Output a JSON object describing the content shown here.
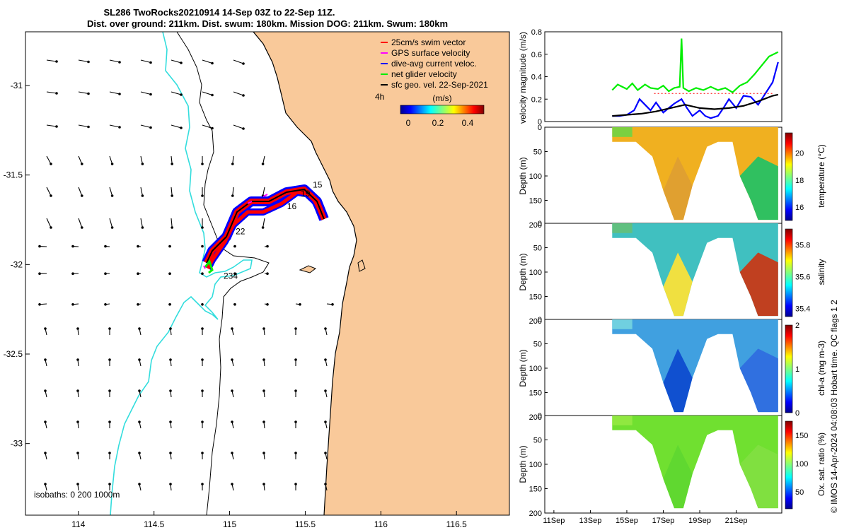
{
  "page": {
    "title_line1": "SL286 TwoRocks20210914 14-Sep 03Z to 22-Sep 11Z.",
    "title_line2": "Dist. over ground: 211km. Dist. swum: 180km. Mission DOG: 211km. Swum: 180km",
    "credit": "© IMOS 14-Apr-2024 04:08:03 Hobart time. QC flags 1  2"
  },
  "colors": {
    "land": "#f9c99a",
    "swim_vector": "#ff0000",
    "gps_surface": "#ff00ff",
    "dive_avg": "#0000ff",
    "net_glider": "#00ee00",
    "sfc_geo": "#000000",
    "isobath": "#33dddd"
  },
  "chart_data": [
    {
      "type": "map",
      "name": "track",
      "xlim": [
        113.65,
        116.85
      ],
      "ylim": [
        -33.4,
        -30.7
      ],
      "x_ticks": [
        "114",
        "114.5",
        "115",
        "115.5",
        "116",
        "116.5"
      ],
      "x_tick_values": [
        114,
        114.5,
        115,
        115.5,
        116,
        116.5
      ],
      "y_ticks": [
        "-31",
        "-31.5",
        "-32",
        "-32.5",
        "-33"
      ],
      "y_tick_values": [
        -31,
        -31.5,
        -32,
        -32.5,
        -33
      ],
      "legend": [
        {
          "label": "25cm/s swim vector",
          "color": "#ff0000"
        },
        {
          "label": "GPS surface velocity",
          "color": "#ff00ff"
        },
        {
          "label": "dive-avg current veloc.",
          "color": "#0000ff"
        },
        {
          "label": "net glider velocity",
          "color": "#00ee00"
        },
        {
          "label": "sfc geo. vel. 22-Sep-2021",
          "color": "#000000"
        }
      ],
      "legend_note": "4h",
      "colorbar": {
        "title": "(m/s)",
        "ticks": [
          "0",
          "0.2",
          "0.4"
        ],
        "range": [
          0,
          0.5
        ]
      },
      "track_labels": [
        {
          "text": "15",
          "lon": 115.55,
          "lat": -31.57
        },
        {
          "text": "19",
          "lon": 115.47,
          "lat": -31.62
        },
        {
          "text": "16",
          "lon": 115.38,
          "lat": -31.69
        },
        {
          "text": "22",
          "lon": 115.04,
          "lat": -31.83
        },
        {
          "text": "234",
          "lon": 114.96,
          "lat": -32.08
        }
      ],
      "isobaths_label": "isobaths: 0   200   1000m"
    },
    {
      "type": "line",
      "name": "velocity",
      "ylabel": "velocity magnitude (m/s)",
      "ylim": [
        0,
        0.8
      ],
      "y_ticks": [
        "0",
        "0.2",
        "0.4",
        "0.6",
        "0.8"
      ],
      "x_range_days": [
        10.5,
        23.5
      ],
      "series": [
        {
          "color": "#00ee00",
          "x": [
            14.2,
            14.5,
            15,
            15.3,
            15.6,
            16,
            16.3,
            16.7,
            17,
            17.3,
            17.6,
            17.9,
            18.0,
            18.1,
            18.4,
            18.8,
            19.2,
            19.6,
            20.0,
            20.4,
            20.8,
            21.2,
            21.6,
            22.0,
            22.4,
            22.8,
            23.3
          ],
          "y": [
            0.28,
            0.33,
            0.29,
            0.34,
            0.28,
            0.33,
            0.3,
            0.29,
            0.32,
            0.27,
            0.3,
            0.31,
            0.74,
            0.3,
            0.27,
            0.3,
            0.28,
            0.31,
            0.28,
            0.3,
            0.26,
            0.32,
            0.35,
            0.42,
            0.5,
            0.58,
            0.62
          ]
        },
        {
          "color": "#0000ff",
          "x": [
            14.2,
            14.6,
            15.0,
            15.4,
            15.7,
            16.0,
            16.3,
            16.6,
            17.0,
            17.3,
            17.6,
            18.0,
            18.3,
            18.6,
            19.0,
            19.3,
            19.6,
            20.0,
            20.3,
            20.6,
            21.0,
            21.4,
            21.8,
            22.2,
            22.6,
            23.0,
            23.3
          ],
          "y": [
            0.05,
            0.05,
            0.06,
            0.1,
            0.2,
            0.15,
            0.1,
            0.17,
            0.08,
            0.12,
            0.16,
            0.2,
            0.12,
            0.05,
            0.1,
            0.05,
            0.03,
            0.05,
            0.12,
            0.2,
            0.12,
            0.23,
            0.22,
            0.15,
            0.25,
            0.35,
            0.53
          ]
        },
        {
          "color": "#000000",
          "x": [
            14.2,
            15.0,
            15.8,
            16.6,
            17.4,
            18.2,
            19.0,
            19.8,
            20.6,
            21.4,
            22.2,
            23.0,
            23.3
          ],
          "y": [
            0.05,
            0.06,
            0.07,
            0.09,
            0.12,
            0.15,
            0.12,
            0.11,
            0.12,
            0.14,
            0.18,
            0.23,
            0.24
          ]
        },
        {
          "color": "#ff0000",
          "x": [
            16.5,
            17,
            17.5,
            18,
            18.5,
            19,
            19.5,
            20,
            20.5,
            21,
            21.5,
            22,
            22.5,
            23
          ],
          "y": [
            0.25,
            0.25,
            0.25,
            0.25,
            0.25,
            0.25,
            0.25,
            0.25,
            0.25,
            0.25,
            0.25,
            0.25,
            0.25,
            0.25
          ]
        }
      ]
    },
    {
      "type": "heatmap",
      "name": "temperature",
      "ylabel": "Depth (m)",
      "clabel": "temperature (°C)",
      "ylim": [
        200,
        0
      ],
      "y_ticks": [
        "0",
        "50",
        "100",
        "150",
        "200"
      ],
      "cbar_ticks": [
        "16",
        "18",
        "20"
      ],
      "cbar_range": [
        15,
        21.5
      ],
      "x_ticks": [
        "11Sep",
        "13Sep",
        "15Sep",
        "17Sep",
        "19Sep",
        "21Sep"
      ],
      "x_tick_values": [
        11,
        13,
        15,
        17,
        19,
        21
      ],
      "x_range_days": [
        10.5,
        23.5
      ]
    },
    {
      "type": "heatmap",
      "name": "salinity",
      "ylabel": "Depth (m)",
      "clabel": "salinity",
      "ylim": [
        200,
        0
      ],
      "y_ticks": [
        "0",
        "50",
        "100",
        "150",
        "200"
      ],
      "cbar_ticks": [
        "35.4",
        "35.6",
        "35.8"
      ],
      "cbar_range": [
        35.35,
        35.9
      ]
    },
    {
      "type": "heatmap",
      "name": "chl-a",
      "ylabel": "Depth (m)",
      "clabel": "chl-a (mg m-3)",
      "ylim": [
        200,
        0
      ],
      "y_ticks": [
        "0",
        "50",
        "100",
        "150",
        "200"
      ],
      "cbar_ticks": [
        "0",
        "1",
        "2"
      ],
      "cbar_range": [
        0,
        2
      ]
    },
    {
      "type": "heatmap",
      "name": "oxygen",
      "ylabel": "Depth (m)",
      "clabel": "Ox. sat. ratio (%)",
      "ylim": [
        200,
        0
      ],
      "y_ticks": [
        "0",
        "50",
        "100",
        "150",
        "200"
      ],
      "cbar_ticks": [
        "50",
        "100",
        "150"
      ],
      "cbar_range": [
        20,
        175
      ]
    }
  ]
}
